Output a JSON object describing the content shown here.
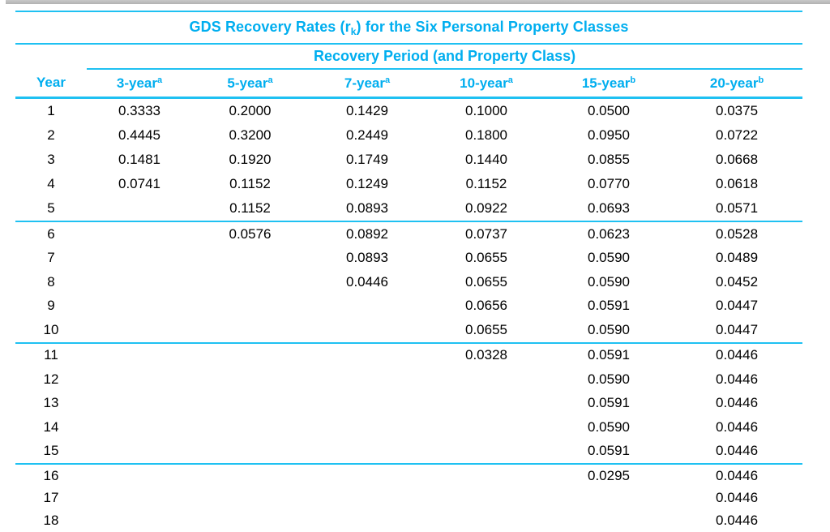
{
  "colors": {
    "accent_text": "#00aeef",
    "rule": "#1fc1f2",
    "top_bar": "#c9c9c9"
  },
  "table": {
    "title": {
      "prefix": "GDS Recovery Rates (r",
      "subscript": "k",
      "suffix": ") for the Six Personal Property Classes"
    },
    "subtitle": "Recovery Period (and Property Class)",
    "columns": [
      {
        "label": "Year",
        "sup": ""
      },
      {
        "label": "3-year",
        "sup": "a"
      },
      {
        "label": "5-year",
        "sup": "a"
      },
      {
        "label": "7-year",
        "sup": "a"
      },
      {
        "label": "10-year",
        "sup": "a"
      },
      {
        "label": "15-year",
        "sup": "b"
      },
      {
        "label": "20-year",
        "sup": "b"
      }
    ],
    "group_breaks": [
      5,
      10,
      15
    ],
    "rows": [
      {
        "year": "1",
        "rates": [
          "0.3333",
          "0.2000",
          "0.1429",
          "0.1000",
          "0.0500",
          "0.0375"
        ]
      },
      {
        "year": "2",
        "rates": [
          "0.4445",
          "0.3200",
          "0.2449",
          "0.1800",
          "0.0950",
          "0.0722"
        ]
      },
      {
        "year": "3",
        "rates": [
          "0.1481",
          "0.1920",
          "0.1749",
          "0.1440",
          "0.0855",
          "0.0668"
        ]
      },
      {
        "year": "4",
        "rates": [
          "0.0741",
          "0.1152",
          "0.1249",
          "0.1152",
          "0.0770",
          "0.0618"
        ]
      },
      {
        "year": "5",
        "rates": [
          "",
          "0.1152",
          "0.0893",
          "0.0922",
          "0.0693",
          "0.0571"
        ]
      },
      {
        "year": "6",
        "rates": [
          "",
          "0.0576",
          "0.0892",
          "0.0737",
          "0.0623",
          "0.0528"
        ]
      },
      {
        "year": "7",
        "rates": [
          "",
          "",
          "0.0893",
          "0.0655",
          "0.0590",
          "0.0489"
        ]
      },
      {
        "year": "8",
        "rates": [
          "",
          "",
          "0.0446",
          "0.0655",
          "0.0590",
          "0.0452"
        ]
      },
      {
        "year": "9",
        "rates": [
          "",
          "",
          "",
          "0.0656",
          "0.0591",
          "0.0447"
        ]
      },
      {
        "year": "10",
        "rates": [
          "",
          "",
          "",
          "0.0655",
          "0.0590",
          "0.0447"
        ]
      },
      {
        "year": "11",
        "rates": [
          "",
          "",
          "",
          "0.0328",
          "0.0591",
          "0.0446"
        ]
      },
      {
        "year": "12",
        "rates": [
          "",
          "",
          "",
          "",
          "0.0590",
          "0.0446"
        ]
      },
      {
        "year": "13",
        "rates": [
          "",
          "",
          "",
          "",
          "0.0591",
          "0.0446"
        ]
      },
      {
        "year": "14",
        "rates": [
          "",
          "",
          "",
          "",
          "0.0590",
          "0.0446"
        ]
      },
      {
        "year": "15",
        "rates": [
          "",
          "",
          "",
          "",
          "0.0591",
          "0.0446"
        ]
      },
      {
        "year": "16",
        "rates": [
          "",
          "",
          "",
          "",
          "0.0295",
          "0.0446"
        ]
      },
      {
        "year": "17",
        "rates": [
          "",
          "",
          "",
          "",
          "",
          "0.0446"
        ]
      },
      {
        "year": "18",
        "rates": [
          "",
          "",
          "",
          "",
          "",
          "0.0446"
        ]
      }
    ]
  }
}
